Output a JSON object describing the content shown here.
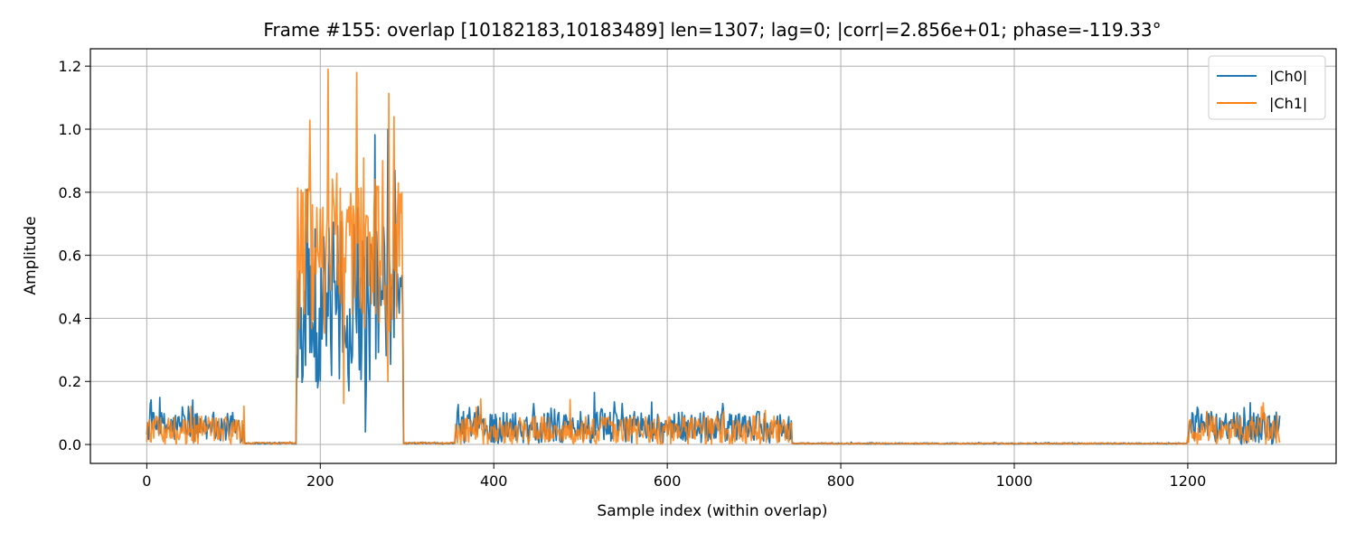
{
  "chart_data": {
    "type": "line",
    "title": "Frame #155: overlap [10182183,10183489]  len=1307; lag=0; |corr|=2.856e+01; phase=-119.33°",
    "xlabel": "Sample index (within overlap)",
    "ylabel": "Amplitude",
    "xlim": [
      -65,
      1371
    ],
    "ylim": [
      -0.06,
      1.255
    ],
    "xticks": [
      0,
      200,
      400,
      600,
      800,
      1000,
      1200
    ],
    "yticks": [
      0.0,
      0.2,
      0.4,
      0.6,
      0.8,
      1.0,
      1.2
    ],
    "xtick_labels": [
      "0",
      "200",
      "400",
      "600",
      "800",
      "1000",
      "1200"
    ],
    "ytick_labels": [
      "0.0",
      "0.2",
      "0.4",
      "0.6",
      "0.8",
      "1.0",
      "1.2"
    ],
    "grid": true,
    "legend_position": "upper right",
    "n_points": 1307,
    "series": [
      {
        "name": "|Ch0|",
        "color": "#1f77b4",
        "segments": [
          {
            "x": [
              0,
              112
            ],
            "level": 0.055,
            "jitter": 0.05
          },
          {
            "x": [
              113,
              172
            ],
            "level": 0.004,
            "jitter": 0.003
          },
          {
            "x": [
              173,
              295
            ],
            "level": 0.45,
            "jitter": 0.26,
            "peaks": [
              [
                205,
                0.58
              ],
              [
                243,
                0.75
              ],
              [
                278,
                1.0
              ],
              [
                282,
                0.5
              ]
            ],
            "dips": [
              [
                197,
                0.18
              ],
              [
                233,
                0.17
              ],
              [
                252,
                0.04
              ]
            ]
          },
          {
            "x": [
              296,
              355
            ],
            "level": 0.004,
            "jitter": 0.003
          },
          {
            "x": [
              356,
              743
            ],
            "level": 0.055,
            "jitter": 0.05,
            "peaks": [
              [
                548,
                0.13
              ],
              [
                664,
                0.13
              ]
            ]
          },
          {
            "x": [
              744,
              1199
            ],
            "level": 0.003,
            "jitter": 0.002
          },
          {
            "x": [
              1200,
              1306
            ],
            "level": 0.055,
            "jitter": 0.05,
            "peaks": [
              [
                1288,
                0.1
              ]
            ]
          }
        ]
      },
      {
        "name": "|Ch1|",
        "color": "#ff7f0e",
        "segments": [
          {
            "x": [
              0,
              112
            ],
            "level": 0.045,
            "jitter": 0.045
          },
          {
            "x": [
              113,
              172
            ],
            "level": 0.004,
            "jitter": 0.003
          },
          {
            "x": [
              173,
              295
            ],
            "level": 0.6,
            "jitter": 0.25,
            "peaks": [
              [
                183,
                0.81
              ],
              [
                209,
                1.19
              ],
              [
                219,
                0.86
              ],
              [
                242,
                1.18
              ],
              [
                272,
                0.9
              ],
              [
                285,
                1.04
              ]
            ],
            "dips": [
              [
                227,
                0.13
              ],
              [
                278,
                0.2
              ]
            ]
          },
          {
            "x": [
              296,
              355
            ],
            "level": 0.004,
            "jitter": 0.003
          },
          {
            "x": [
              356,
              743
            ],
            "level": 0.045,
            "jitter": 0.045
          },
          {
            "x": [
              744,
              1199
            ],
            "level": 0.003,
            "jitter": 0.002
          },
          {
            "x": [
              1200,
              1306
            ],
            "level": 0.045,
            "jitter": 0.045
          }
        ]
      }
    ]
  }
}
